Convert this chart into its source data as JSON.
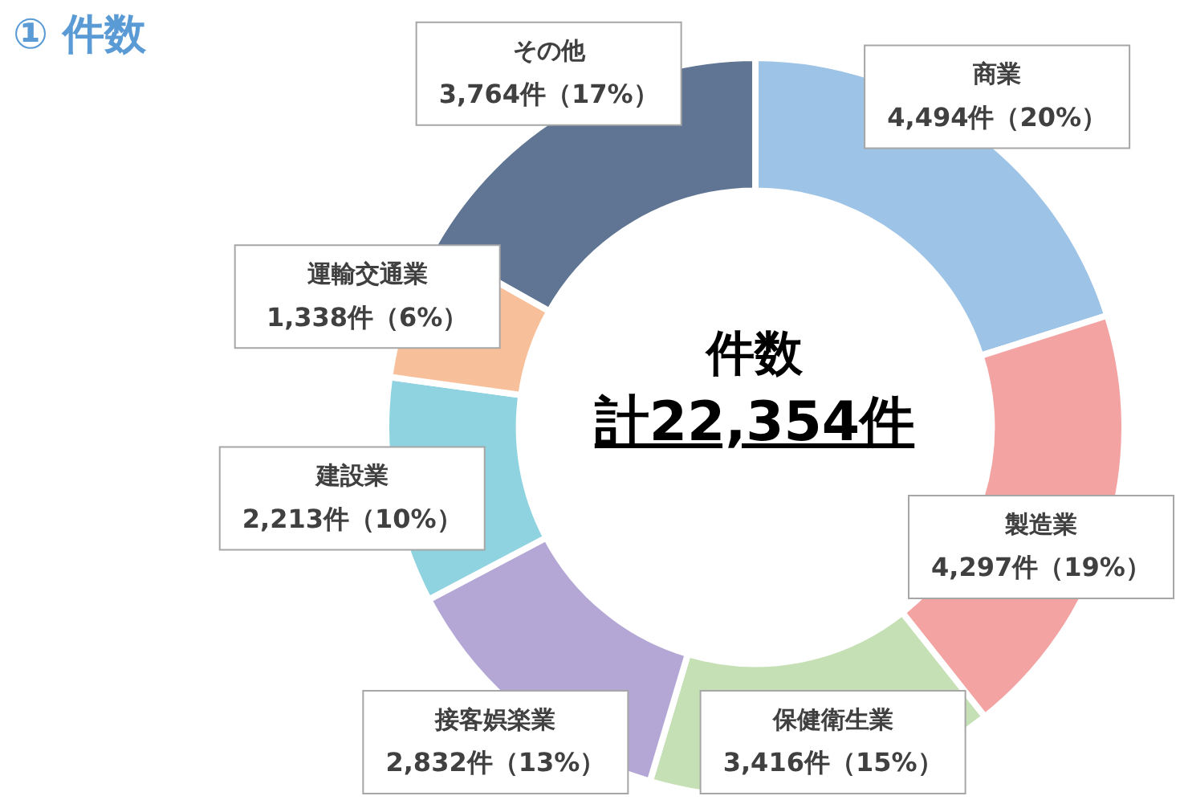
{
  "chart_data": {
    "type": "donut",
    "title": "① 件数",
    "categories": [
      "商業",
      "製造業",
      "保健衛生業",
      "接客娯楽業",
      "建設業",
      "運輸交通業",
      "その他"
    ],
    "values": [
      4494,
      4297,
      3416,
      2832,
      2213,
      1338,
      3764
    ],
    "colors": [
      "#9dc3e6",
      "#f4a3a3",
      "#c5e0b4",
      "#b4a7d6",
      "#8fd3e0",
      "#f8c09a",
      "#5f7593"
    ],
    "value_labels": [
      "4,494件（20%）",
      "4,297件（19%）",
      "3,416件（15%）",
      "2,832件（13%）",
      "2,213件（10%）",
      "1,338件（6%）",
      "3,764件（17%）"
    ],
    "annotations": [
      "件数",
      "計22,354件"
    ]
  }
}
